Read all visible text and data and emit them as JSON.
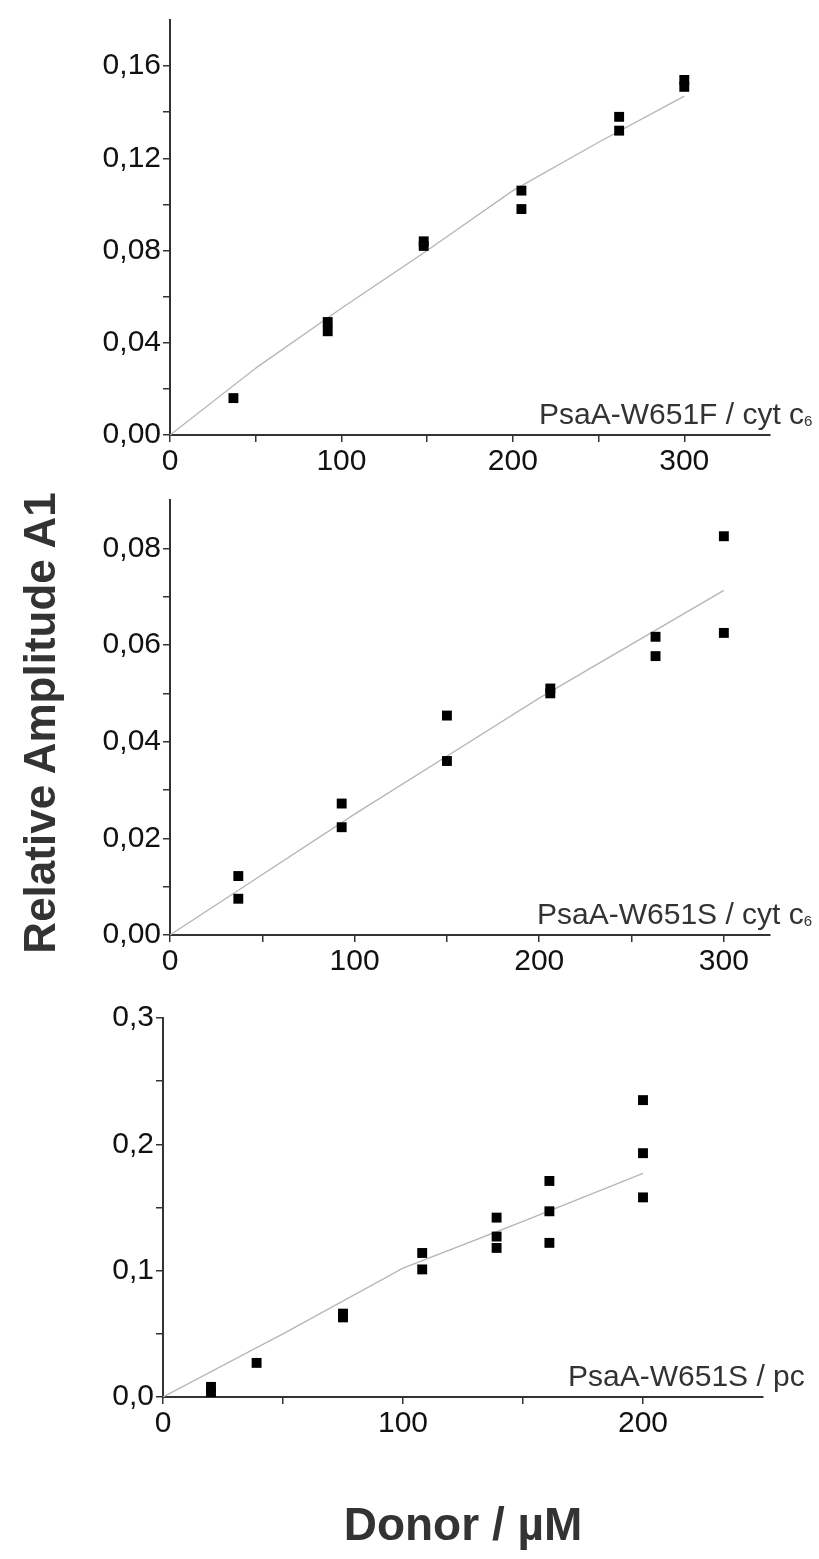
{
  "chart_data": [
    {
      "type": "scatter",
      "annotations": [
        "PsaA-W651F / cyt c$_{6}$"
      ],
      "xlim": [
        0,
        350
      ],
      "ylim": [
        0,
        0.18
      ],
      "xticks": [
        0,
        {
          "value": 50,
          "label": null
        },
        100,
        {
          "value": 150,
          "label": null
        },
        200,
        {
          "value": 250,
          "label": null
        },
        300
      ],
      "yticks": [
        {
          "value": 0,
          "label": "0,00"
        },
        {
          "value": 0.02,
          "label": null
        },
        {
          "value": 0.04,
          "label": "0,04"
        },
        {
          "value": 0.06,
          "label": null
        },
        {
          "value": 0.08,
          "label": "0,08"
        },
        {
          "value": 0.1,
          "label": null
        },
        {
          "value": 0.12,
          "label": "0,12"
        },
        {
          "value": 0.14,
          "label": null
        },
        {
          "value": 0.16,
          "label": "0,16"
        }
      ],
      "grid": false,
      "legend": false,
      "series": [
        {
          "type": "scatter",
          "marker": "square",
          "color": "#000000",
          "x": [
            37,
            92,
            92,
            148,
            148,
            205,
            205,
            262,
            262,
            300,
            300
          ],
          "values": [
            0.016,
            0.049,
            0.045,
            0.084,
            0.082,
            0.106,
            0.098,
            0.138,
            0.132,
            0.154,
            0.151
          ]
        },
        {
          "type": "line",
          "marker": "none",
          "color": "#b5b5b5",
          "x": [
            0,
            50,
            100,
            150,
            200,
            250,
            300
          ],
          "values": [
            0,
            0.029,
            0.055,
            0.08,
            0.106,
            0.127,
            0.147
          ]
        }
      ]
    },
    {
      "type": "scatter",
      "ylabel": "Relative Amplitude A1",
      "annotations": [
        "PsaA-W651S / cyt c$_{6}$"
      ],
      "xlim": [
        0,
        325
      ],
      "ylim": [
        0,
        0.09
      ],
      "xticks": [
        0,
        {
          "value": 50,
          "label": null
        },
        100,
        {
          "value": 150,
          "label": null
        },
        200,
        {
          "value": 250,
          "label": null
        },
        300
      ],
      "yticks": [
        {
          "value": 0,
          "label": "0,00"
        },
        {
          "value": 0.01,
          "label": null
        },
        {
          "value": 0.02,
          "label": "0,02"
        },
        {
          "value": 0.03,
          "label": null
        },
        {
          "value": 0.04,
          "label": "0,04"
        },
        {
          "value": 0.05,
          "label": null
        },
        {
          "value": 0.06,
          "label": "0,06"
        },
        {
          "value": 0.07,
          "label": null
        },
        {
          "value": 0.08,
          "label": "0,08"
        }
      ],
      "grid": false,
      "legend": false,
      "series": [
        {
          "type": "scatter",
          "marker": "square",
          "color": "#000000",
          "x": [
            37,
            37,
            93,
            93,
            150,
            150,
            206,
            206,
            263,
            263,
            300,
            300
          ],
          "values": [
            0.0122,
            0.0075,
            0.0272,
            0.0223,
            0.0454,
            0.036,
            0.051,
            0.05,
            0.0617,
            0.0577,
            0.0825,
            0.0625
          ]
        },
        {
          "type": "line",
          "marker": "none",
          "color": "#b5b5b5",
          "x": [
            0,
            100,
            200,
            300
          ],
          "values": [
            0,
            0.025,
            0.049,
            0.0713
          ]
        }
      ]
    },
    {
      "type": "scatter",
      "xlabel": "Donor / µM",
      "annotations": [
        "PsaA-W651S / pc"
      ],
      "xlim": [
        0,
        250
      ],
      "ylim": [
        0,
        0.3
      ],
      "xticks": [
        0,
        {
          "value": 50,
          "label": null
        },
        100,
        {
          "value": 150,
          "label": null
        },
        200
      ],
      "yticks": [
        {
          "value": 0,
          "label": "0,0"
        },
        {
          "value": 0.05,
          "label": null
        },
        {
          "value": 0.1,
          "label": "0,1"
        },
        {
          "value": 0.15,
          "label": null
        },
        {
          "value": 0.2,
          "label": "0,2"
        },
        {
          "value": 0.25,
          "label": null
        },
        {
          "value": 0.3,
          "label": "0,3"
        }
      ],
      "grid": false,
      "legend": false,
      "series": [
        {
          "type": "scatter",
          "marker": "square",
          "color": "#000000",
          "x": [
            20,
            20,
            39,
            75,
            75,
            108,
            108,
            139,
            139,
            139,
            161,
            161,
            161,
            200,
            200,
            200
          ],
          "values": [
            0.008,
            0.003,
            0.027,
            0.066,
            0.063,
            0.114,
            0.101,
            0.142,
            0.127,
            0.118,
            0.171,
            0.147,
            0.122,
            0.235,
            0.193,
            0.158
          ]
        },
        {
          "type": "line",
          "marker": "none",
          "color": "#b5b5b5",
          "x": [
            0,
            50,
            100,
            150,
            200
          ],
          "values": [
            0,
            0.05,
            0.102,
            0.139,
            0.177
          ]
        }
      ]
    }
  ]
}
